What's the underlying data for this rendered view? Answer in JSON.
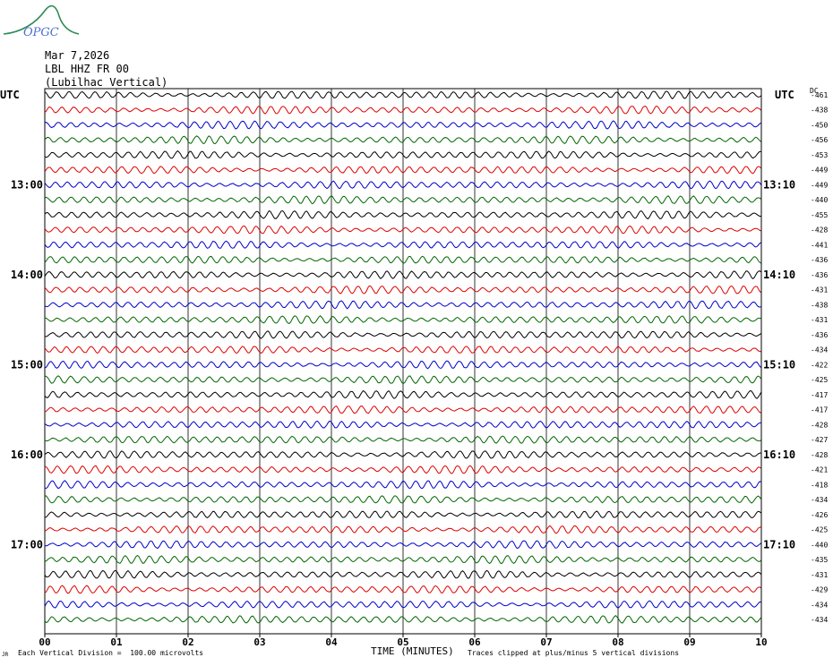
{
  "logo": {
    "text": "OPGC",
    "colors": {
      "curve": "#2e8b57",
      "text": "#4a6fd0"
    }
  },
  "header": {
    "date": "Mar 7,2026",
    "station": "LBL HHZ FR 00",
    "location": "(Lubilhac Vertical)"
  },
  "utc_label": "UTC",
  "dc_label": "DC",
  "footer": {
    "scale_note": "Each Vertical Division =  100.00 microvolts",
    "clip_note": "Traces clipped at plus/minus 5 vertical divisions",
    "corner_mark": "JR"
  },
  "chart_data": {
    "type": "line",
    "xlabel": "TIME (MINUTES)",
    "x_ticks": [
      "00",
      "01",
      "02",
      "03",
      "04",
      "05",
      "06",
      "07",
      "08",
      "09",
      "10"
    ],
    "xlim": [
      0,
      10
    ],
    "trace_count": 36,
    "trace_colors": [
      "#000000",
      "#e00000",
      "#0000cc",
      "#006600"
    ],
    "left_time_labels": [
      {
        "trace": 6,
        "label": "13:00"
      },
      {
        "trace": 12,
        "label": "14:00"
      },
      {
        "trace": 18,
        "label": "15:00"
      },
      {
        "trace": 24,
        "label": "16:00"
      },
      {
        "trace": 30,
        "label": "17:00"
      }
    ],
    "right_time_labels": [
      {
        "trace": 6,
        "label": "13:10"
      },
      {
        "trace": 12,
        "label": "14:10"
      },
      {
        "trace": 18,
        "label": "15:10"
      },
      {
        "trace": 24,
        "label": "16:10"
      },
      {
        "trace": 30,
        "label": "17:10"
      }
    ],
    "dc_offsets": [
      -461,
      -438,
      -450,
      -456,
      -453,
      -449,
      -449,
      -440,
      -455,
      -428,
      -441,
      -436,
      -436,
      -431,
      -438,
      -431,
      -436,
      -434,
      -422,
      -425,
      -417,
      -417,
      -428,
      -427,
      -428,
      -421,
      -418,
      -434,
      -426,
      -425,
      -440,
      -435,
      -431,
      -429,
      -434,
      -434
    ],
    "grid": true
  }
}
